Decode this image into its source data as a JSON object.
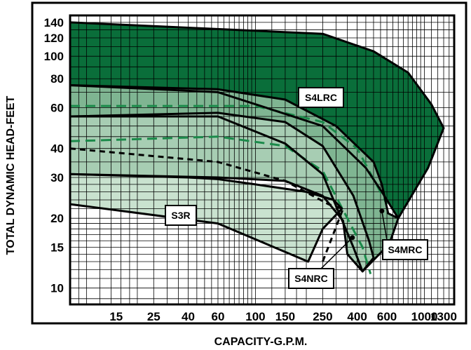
{
  "chart_data": {
    "type": "area",
    "xlabel": "CAPACITY-G.P.M.",
    "ylabel": "TOTAL DYNAMIC HEAD-FEET",
    "x_scale": "log",
    "y_scale": "log",
    "grid": true,
    "x_ticks": [
      15,
      25,
      40,
      60,
      100,
      150,
      250,
      400,
      600,
      1000,
      1300
    ],
    "x_tick_labels": [
      "15",
      "25",
      "40",
      "60",
      "100",
      "150",
      "250",
      "400",
      "600",
      "1000",
      "1300"
    ],
    "y_ticks": [
      10,
      15,
      20,
      30,
      40,
      60,
      80,
      100,
      120,
      140
    ],
    "y_tick_labels": [
      "10",
      "15",
      "20",
      "30",
      "40",
      "60",
      "80",
      "100",
      "120",
      "140"
    ],
    "xlim": [
      8,
      1500
    ],
    "ylim": [
      8.5,
      150
    ],
    "colors": {
      "S4LRC": "#0a6e3a",
      "S4MRC": "#7fb592",
      "S4NRC": "#a7cdb3",
      "S3R": "#c9e2cf",
      "grid": "#000000",
      "dashed_green": "#1b8a4a",
      "dashed_black": "#000000"
    },
    "regions": [
      {
        "name": "S4LRC",
        "label": "S4LRC",
        "x": [
          8,
          250,
          500,
          800,
          1100,
          1300,
          1050,
          700,
          560,
          450,
          250,
          60,
          8
        ],
        "y": [
          140,
          125,
          105,
          85,
          62,
          49,
          33,
          20,
          26,
          33,
          50,
          70,
          75
        ]
      },
      {
        "name": "S4MRC",
        "label": "S4MRC",
        "x": [
          8,
          60,
          150,
          300,
          500,
          560,
          610,
          700,
          620,
          430,
          380,
          250,
          150,
          60,
          8
        ],
        "y": [
          75,
          72,
          65,
          50,
          35,
          28,
          21,
          20,
          15.5,
          11.8,
          15,
          31,
          42,
          55,
          55
        ]
      },
      {
        "name": "S4NRC",
        "label": "S4NRC",
        "x": [
          8,
          60,
          150,
          250,
          380,
          470,
          500,
          430,
          350,
          330,
          250,
          150,
          60,
          8
        ],
        "y": [
          55,
          57,
          52,
          41,
          25,
          16,
          13.5,
          11.8,
          14,
          19.5,
          25,
          29,
          30,
          31
        ]
      },
      {
        "name": "S3R",
        "label": "S3R",
        "x": [
          8,
          40,
          60,
          100,
          200,
          290,
          325,
          250,
          205,
          60,
          8
        ],
        "y": [
          31,
          30,
          29.5,
          28,
          26,
          24,
          22,
          18,
          13,
          19,
          23
        ]
      }
    ],
    "curves": [
      {
        "style": "dashed-green",
        "x": [
          8,
          100,
          250,
          400,
          600
        ],
        "y": [
          61,
          61,
          52,
          40,
          23
        ]
      },
      {
        "style": "dashed-green",
        "x": [
          8,
          60,
          150,
          250,
          350,
          430,
          480
        ],
        "y": [
          43,
          45,
          41,
          32,
          20,
          15,
          11.5
        ]
      },
      {
        "style": "dashed-black",
        "x": [
          8,
          60,
          150,
          270,
          330,
          250
        ],
        "y": [
          40,
          35,
          29,
          23,
          22,
          13
        ]
      }
    ],
    "annotations": [
      {
        "text": "S4LRC",
        "points_to": null
      },
      {
        "text": "S3R",
        "points_to": null
      },
      {
        "text": "S4NRC",
        "points_to": [
          375,
          16.5
        ]
      },
      {
        "text": "S4MRC",
        "points_to": [
          560,
          21.5
        ]
      }
    ]
  }
}
